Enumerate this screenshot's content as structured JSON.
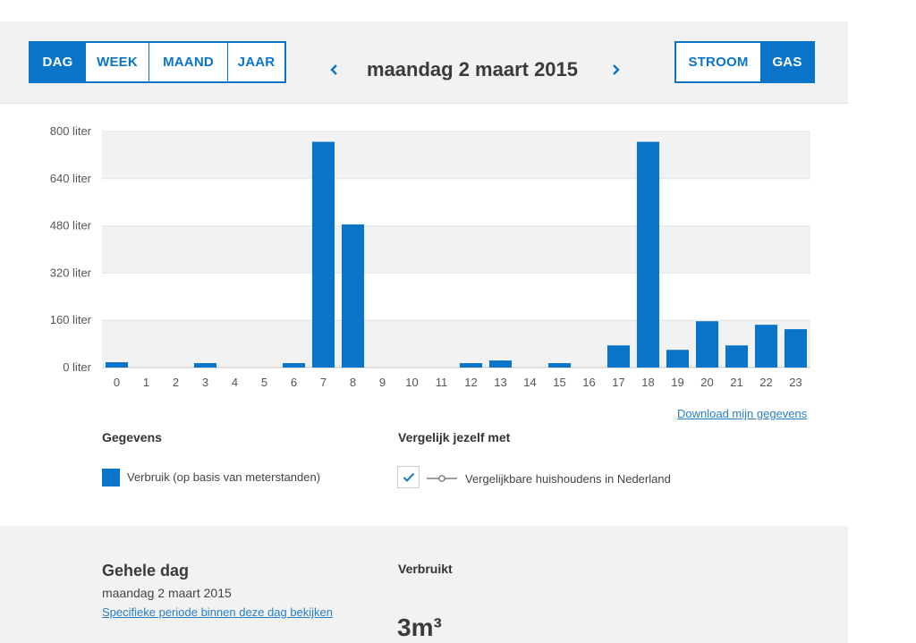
{
  "header": {
    "period_tabs": [
      "DAG",
      "WEEK",
      "MAAND",
      "JAAR"
    ],
    "active_period": "DAG",
    "date_title": "maandag 2 maart 2015",
    "energy_tabs": [
      "STROOM",
      "GAS"
    ],
    "active_energy": "GAS",
    "prev_icon": "chevron-left-icon",
    "next_icon": "chevron-right-icon",
    "accent_color": "#0a74c8"
  },
  "chart_data": {
    "type": "bar",
    "categories": [
      "0",
      "1",
      "2",
      "3",
      "4",
      "5",
      "6",
      "7",
      "8",
      "9",
      "10",
      "11",
      "12",
      "13",
      "14",
      "15",
      "16",
      "17",
      "18",
      "19",
      "20",
      "21",
      "22",
      "23"
    ],
    "values": [
      18,
      0,
      0,
      15,
      0,
      0,
      15,
      765,
      485,
      0,
      0,
      0,
      15,
      24,
      0,
      15,
      0,
      75,
      765,
      60,
      157,
      75,
      145,
      130
    ],
    "y_ticks": [
      "800 liter",
      "640 liter",
      "480 liter",
      "320 liter",
      "160 liter",
      "0 liter"
    ],
    "ylim": [
      0,
      800
    ],
    "bar_color": "#0a74c8",
    "grid": "alternating bands"
  },
  "download_link": "Download mijn gegevens",
  "legend": {
    "title": "Gegevens",
    "item_label": "Verbruik (op basis van meterstanden)",
    "color": "#0a74c8"
  },
  "compare": {
    "title": "Vergelijk jezelf met",
    "checked": true,
    "item_label": "Vergelijkbare huishoudens in Nederland"
  },
  "summary": {
    "title": "Gehele dag",
    "date": "maandag 2 maart 2015",
    "link": "Specifieke periode binnen deze dag bekijken",
    "verbruikt_label": "Verbruikt",
    "verbruikt_value": "3m³"
  }
}
